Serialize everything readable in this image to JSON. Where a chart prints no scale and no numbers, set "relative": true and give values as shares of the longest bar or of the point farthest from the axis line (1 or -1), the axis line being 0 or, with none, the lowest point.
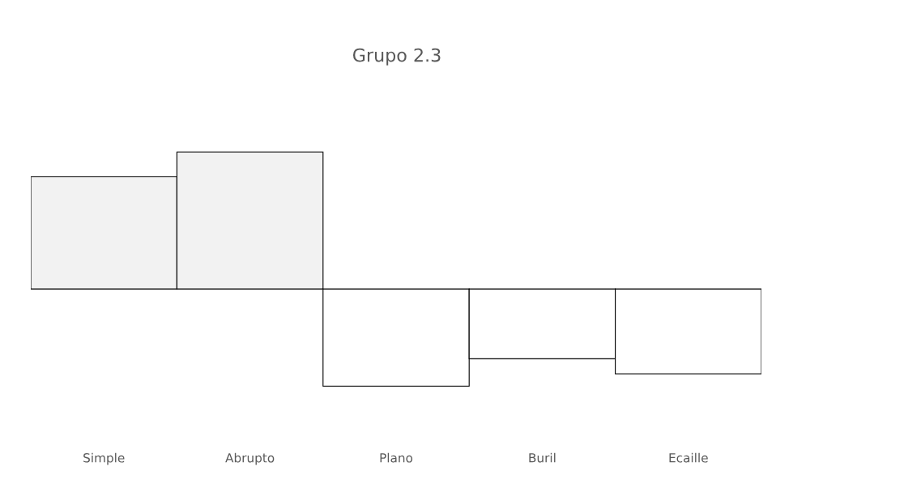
{
  "chart_data": {
    "type": "bar",
    "title": "Grupo 2.3",
    "relative": true,
    "categories": [
      "Simple",
      "Abrupto",
      "Plano",
      "Buril",
      "Ecaille"
    ],
    "values": [
      0.82,
      1,
      -0.71,
      -0.51,
      -0.62
    ],
    "colors": [
      "#f2f2f2",
      "#f2f2f2",
      "#ffffff",
      "#ffffff",
      "#ffffff"
    ],
    "grid": false,
    "legend": false
  }
}
